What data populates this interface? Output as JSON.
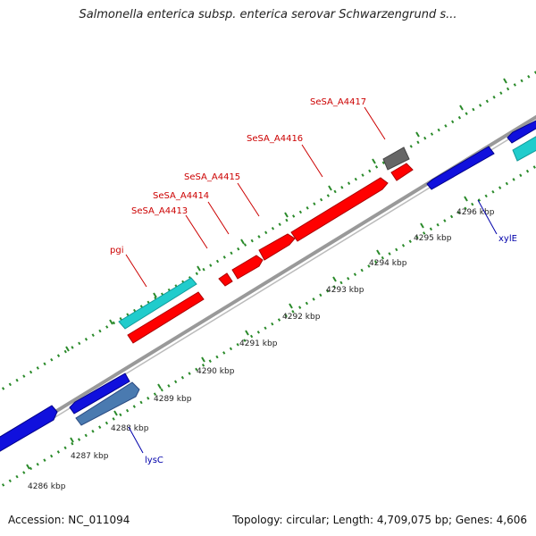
{
  "title": "Salmonella enterica subsp. enterica serovar Schwarzengrund s...",
  "footer": {
    "accession": "Accession: NC_011094",
    "topology": "Topology: circular; Length: 4,709,075 bp; Genes: 4,606"
  },
  "ticks": [
    "4286 kbp",
    "4287 kbp",
    "4288 kbp",
    "4289 kbp",
    "4290 kbp",
    "4291 kbp",
    "4292 kbp",
    "4293 kbp",
    "4294 kbp",
    "4295 kbp",
    "4296 kbp"
  ],
  "gene_labels": {
    "pgi": "pgi",
    "a4413": "SeSA_A4413",
    "a4414": "SeSA_A4414",
    "a4415": "SeSA_A4415",
    "a4416": "SeSA_A4416",
    "a4417": "SeSA_A4417",
    "lysC": "lysC",
    "xylE": "xylE"
  },
  "colors": {
    "red_gene": "#ff0000",
    "blue_gene": "#1010dd",
    "cyan_gene": "#20cccc",
    "steel_gene": "#4a7ab0",
    "gray_gene": "#666666",
    "backbone": "#999999",
    "tick_green": "#2a8a2a",
    "label_red": "#cc0000",
    "label_blue": "#0000aa"
  }
}
